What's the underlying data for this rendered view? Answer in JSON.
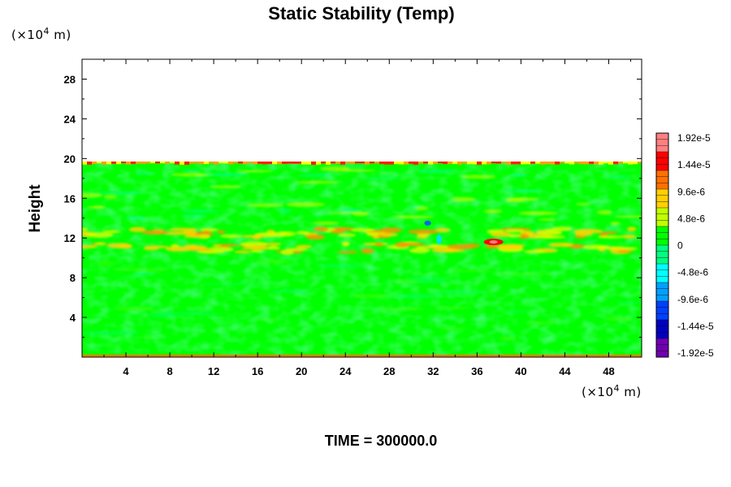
{
  "chart_data": {
    "type": "heatmap",
    "title": "Static Stability (Temp)",
    "ylabel": "Height",
    "x_unit_base": "(×10",
    "x_unit_exp": "4",
    "x_unit_tail": " m)",
    "y_unit_base": "(×10",
    "y_unit_exp": "4",
    "y_unit_tail": " m)",
    "xlim": [
      0,
      51
    ],
    "ylim": [
      0,
      30
    ],
    "x_ticks": [
      "4",
      "8",
      "12",
      "16",
      "20",
      "24",
      "28",
      "32",
      "36",
      "40",
      "44",
      "48"
    ],
    "y_ticks": [
      "4",
      "8",
      "12",
      "16",
      "20",
      "24",
      "28"
    ],
    "x_tick_values": [
      4,
      8,
      12,
      16,
      20,
      24,
      28,
      32,
      36,
      40,
      44,
      48
    ],
    "y_tick_values": [
      4,
      8,
      12,
      16,
      20,
      24,
      28
    ],
    "data_top": 19.7,
    "dominant_value": 0,
    "colorbar": {
      "labels": [
        "1.92e-5",
        "1.44e-5",
        "9.6e-6",
        "4.8e-6",
        "0",
        "-4.8e-6",
        "-9.6e-6",
        "-1.44e-5",
        "-1.92e-5"
      ],
      "colors": [
        "#ff8080",
        "#ff0000",
        "#ff7000",
        "#ffd000",
        "#c0ff00",
        "#00ff00",
        "#00ff80",
        "#00ffff",
        "#00a0ff",
        "#0040ff",
        "#0000c0",
        "#7000b0"
      ]
    },
    "features": [
      {
        "name": "upper band",
        "y": 11,
        "x_range": [
          0,
          51
        ],
        "value": "4.8e-6"
      },
      {
        "name": "lower band",
        "y": 12.5,
        "x_range": [
          0,
          51
        ],
        "value": "4.8e-6"
      },
      {
        "name": "strong maximum",
        "x": 37.5,
        "y": 11.6,
        "value": "1.92e-5"
      },
      {
        "name": "minimum patch",
        "x": 31.5,
        "y": 13.5,
        "value": "-1.44e-5"
      },
      {
        "name": "top boundary",
        "y": 19.7,
        "x_range": [
          0,
          51
        ],
        "value": "1.44e-5"
      }
    ]
  },
  "footer": {
    "time_label": "TIME = 300000.0"
  }
}
